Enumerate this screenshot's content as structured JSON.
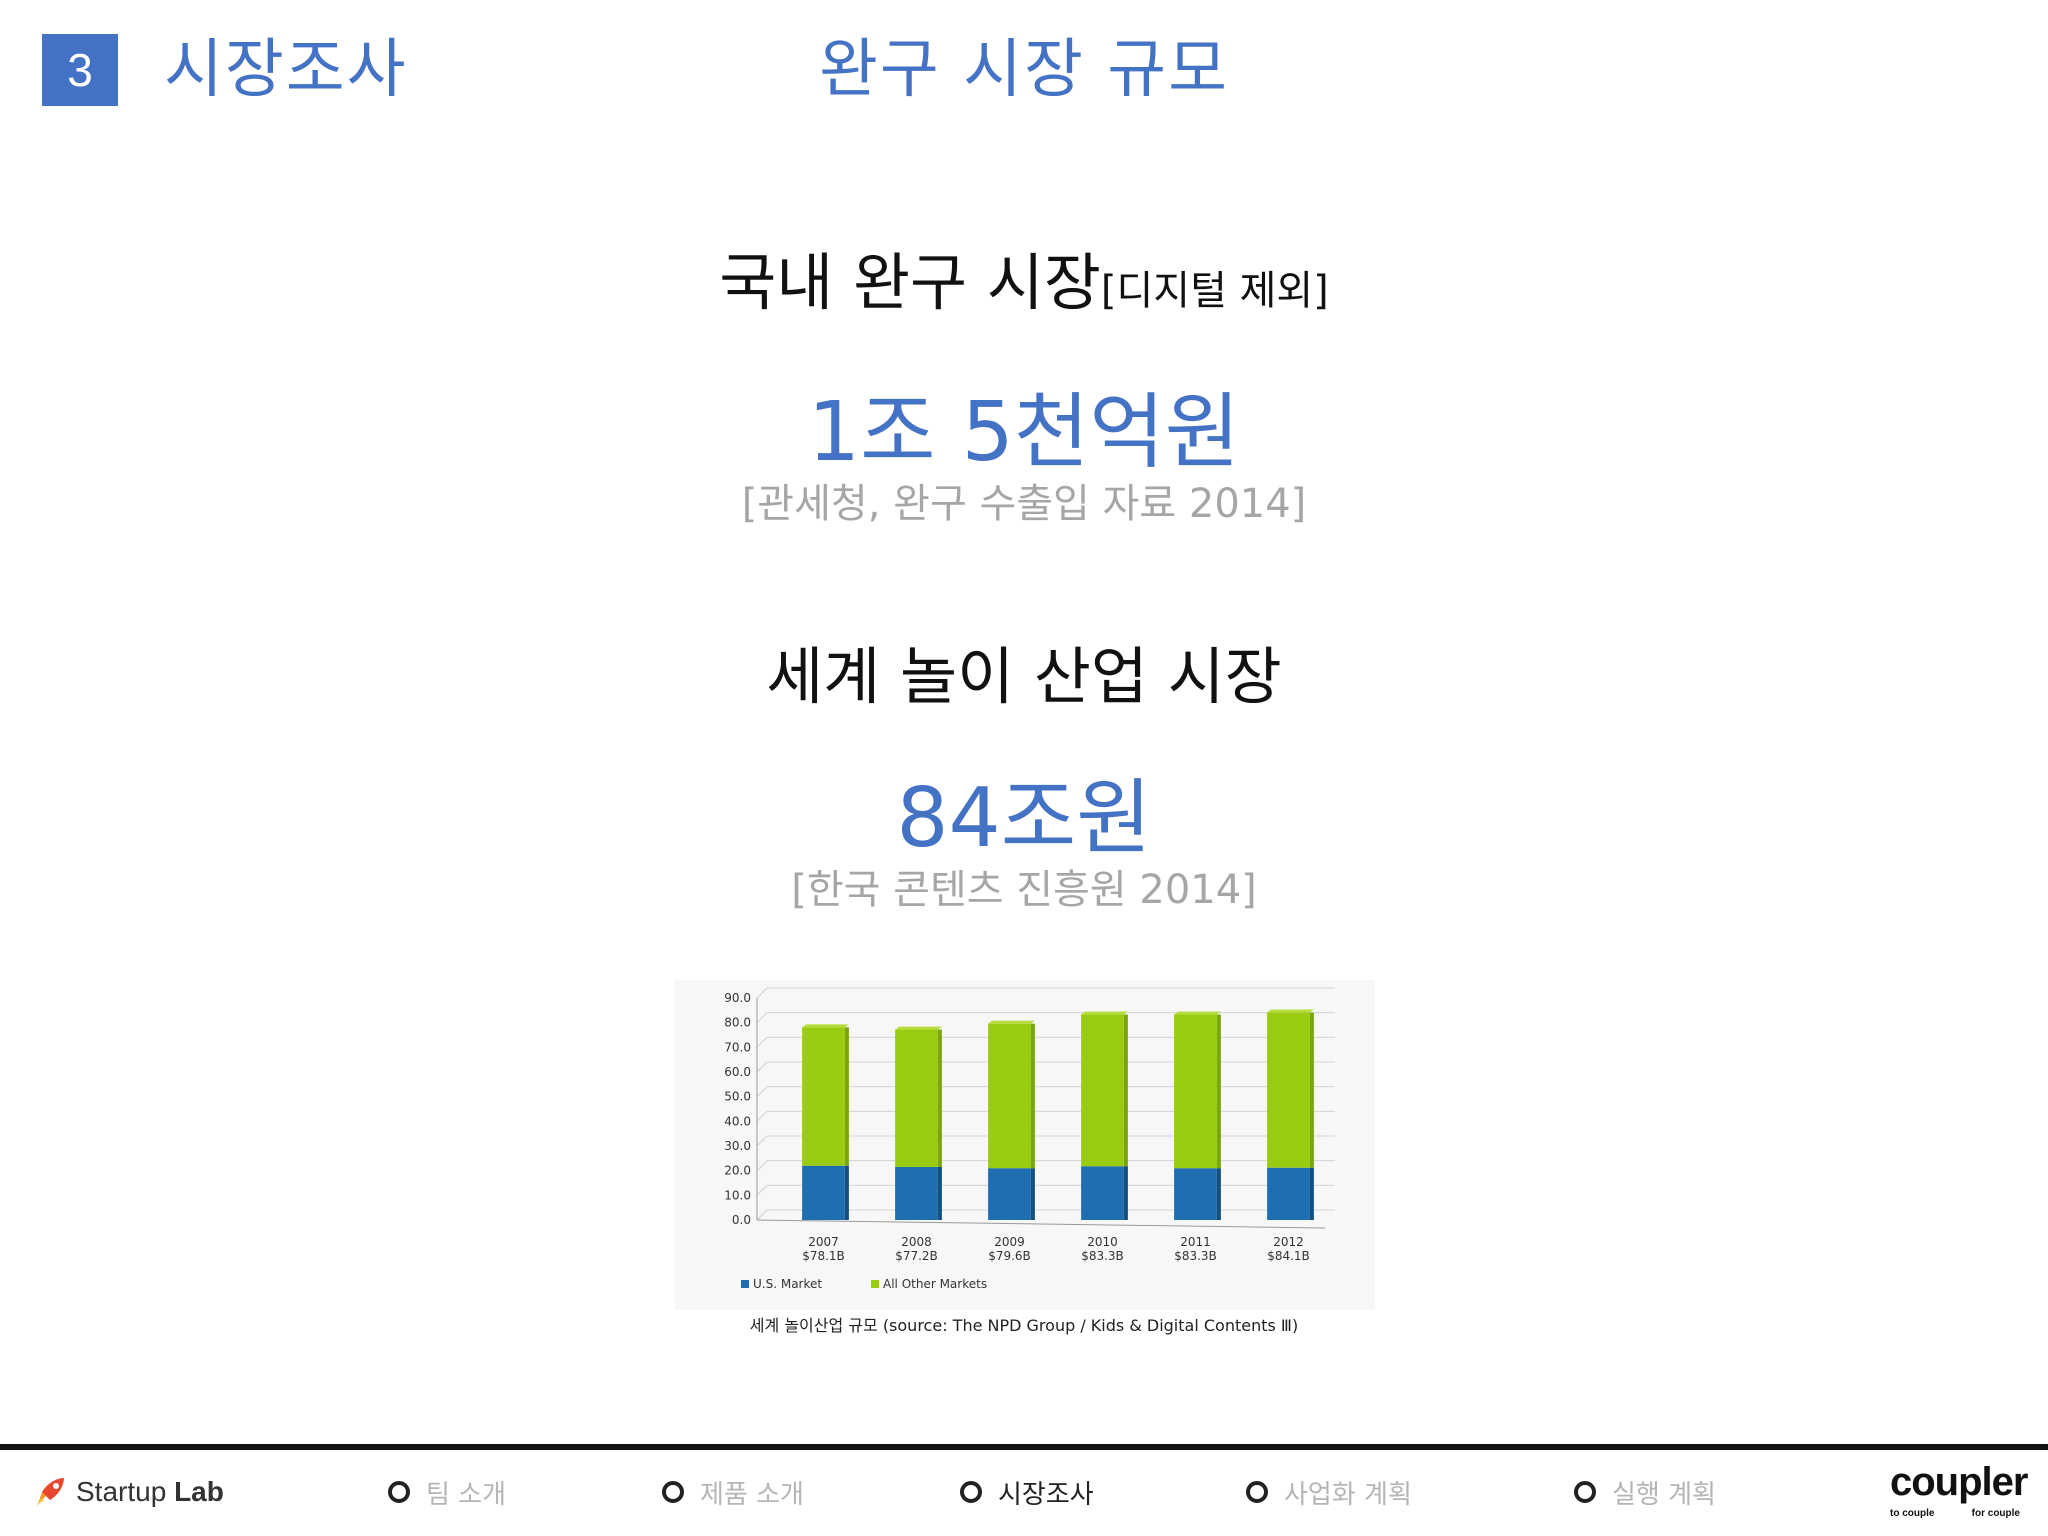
{
  "header": {
    "section_number": "3",
    "section_title": "시장조사",
    "page_title": "완구 시장 규모"
  },
  "domestic": {
    "heading": "국내 완구 시장",
    "heading_note": "[디지털 제외]",
    "value": "1조 5천억원",
    "source": "[관세청, 완구 수출입 자료 2014]"
  },
  "global": {
    "heading": "세계 놀이 산업 시장",
    "value": "84조원",
    "source": "[한국 콘텐츠 진흥원 2014]"
  },
  "chart_data": {
    "type": "bar",
    "stacked": true,
    "categories": [
      "2007",
      "2008",
      "2009",
      "2010",
      "2011",
      "2012"
    ],
    "category_sublabels": [
      "$78.1B",
      "$77.2B",
      "$79.6B",
      "$83.3B",
      "$83.3B",
      "$84.1B"
    ],
    "series": [
      {
        "name": "U.S. Market",
        "color": "#1f6fb0",
        "values": [
          22.0,
          21.5,
          21.0,
          21.8,
          21.0,
          21.2
        ]
      },
      {
        "name": "All Other Markets",
        "color": "#99cc11",
        "values": [
          56.1,
          55.7,
          58.6,
          61.5,
          62.3,
          62.9
        ]
      }
    ],
    "y_ticks": [
      "0.0",
      "10.0",
      "20.0",
      "30.0",
      "40.0",
      "50.0",
      "60.0",
      "70.0",
      "80.0",
      "90.0"
    ],
    "ylim": [
      0,
      90
    ],
    "grid": true,
    "legend_placement": "bottom-left"
  },
  "chart_caption": "세계 놀이산업 규모 (source: The NPD Group / Kids & Digital Contents Ⅲ)",
  "footer": {
    "logo_left": {
      "word1": "Startup",
      "word2": "Lab"
    },
    "nav": [
      {
        "label": "팀 소개"
      },
      {
        "label": "제품 소개"
      },
      {
        "label": "시장조사"
      },
      {
        "label": "사업화 계획"
      },
      {
        "label": "실행 계획"
      }
    ],
    "logo_right": {
      "word": "coupler",
      "tag_left": "to couple",
      "tag_right": "for couple"
    }
  }
}
